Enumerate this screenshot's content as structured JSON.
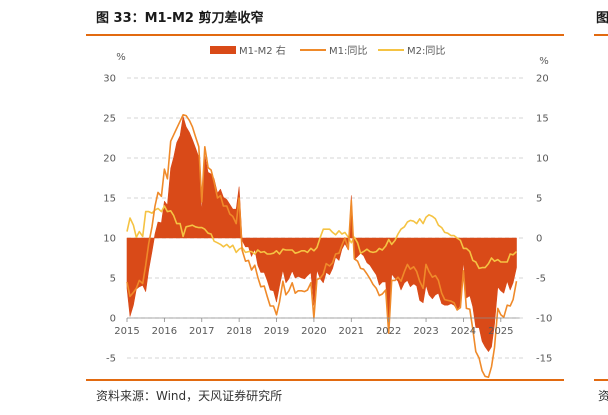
{
  "figure": {
    "title": "图 33：M1-M2 剪刀差收窄",
    "next_panel_title_fragment": "图",
    "source": "资料来源：Wind，天风证券研究所",
    "next_panel_source_fragment": "资"
  },
  "chart_data": {
    "type": "line",
    "title": "M1-M2 剪刀差收窄",
    "left_axis": {
      "unit": "%",
      "ylim": [
        -5,
        30
      ],
      "ticks": [
        -5,
        0,
        5,
        10,
        15,
        20,
        25,
        30
      ]
    },
    "right_axis": {
      "unit": "%",
      "ylim": [
        -15,
        20
      ],
      "ticks": [
        -15,
        -10,
        -5,
        0,
        5,
        10,
        15,
        20
      ]
    },
    "x_ticks": [
      "2015",
      "2016",
      "2017",
      "2018",
      "2019",
      "2020",
      "2021",
      "2022",
      "2023",
      "2024",
      "2025"
    ],
    "legend": [
      "M1-M2 右",
      "M1:同比",
      "M2:同比"
    ],
    "colors": {
      "gap": "#d94a18",
      "m1": "#ef8a2a",
      "m2": "#f5c343",
      "grid": "#c8c8c8",
      "text": "#595959"
    },
    "series": [
      {
        "name": "M1:同比",
        "axis": "left",
        "points": [
          [
            2015.0,
            4.5
          ],
          [
            2015.08,
            2.7
          ],
          [
            2015.17,
            3.2
          ],
          [
            2015.25,
            3.7
          ],
          [
            2015.33,
            4.7
          ],
          [
            2015.42,
            4.3
          ],
          [
            2015.5,
            6.6
          ],
          [
            2015.58,
            9.3
          ],
          [
            2015.67,
            11.4
          ],
          [
            2015.75,
            14.0
          ],
          [
            2015.83,
            15.7
          ],
          [
            2015.92,
            15.2
          ],
          [
            2016.0,
            18.6
          ],
          [
            2016.08,
            17.4
          ],
          [
            2016.17,
            22.1
          ],
          [
            2016.25,
            22.9
          ],
          [
            2016.33,
            23.7
          ],
          [
            2016.42,
            24.6
          ],
          [
            2016.5,
            25.4
          ],
          [
            2016.58,
            25.3
          ],
          [
            2016.67,
            24.7
          ],
          [
            2016.75,
            23.9
          ],
          [
            2016.83,
            22.7
          ],
          [
            2016.92,
            21.4
          ],
          [
            2017.0,
            14.5
          ],
          [
            2017.08,
            21.4
          ],
          [
            2017.17,
            18.8
          ],
          [
            2017.25,
            18.5
          ],
          [
            2017.33,
            17.0
          ],
          [
            2017.42,
            15.0
          ],
          [
            2017.5,
            15.3
          ],
          [
            2017.58,
            14.0
          ],
          [
            2017.67,
            14.0
          ],
          [
            2017.75,
            13.0
          ],
          [
            2017.83,
            12.7
          ],
          [
            2017.92,
            11.8
          ],
          [
            2018.0,
            15.0
          ],
          [
            2018.08,
            8.5
          ],
          [
            2018.17,
            7.1
          ],
          [
            2018.25,
            7.2
          ],
          [
            2018.33,
            6.0
          ],
          [
            2018.42,
            6.6
          ],
          [
            2018.5,
            5.1
          ],
          [
            2018.58,
            3.9
          ],
          [
            2018.67,
            4.0
          ],
          [
            2018.75,
            2.7
          ],
          [
            2018.83,
            1.5
          ],
          [
            2018.92,
            1.5
          ],
          [
            2019.0,
            0.4
          ],
          [
            2019.08,
            2.0
          ],
          [
            2019.17,
            4.6
          ],
          [
            2019.25,
            2.9
          ],
          [
            2019.33,
            3.4
          ],
          [
            2019.42,
            4.4
          ],
          [
            2019.5,
            3.1
          ],
          [
            2019.58,
            3.4
          ],
          [
            2019.67,
            3.4
          ],
          [
            2019.75,
            3.3
          ],
          [
            2019.83,
            3.5
          ],
          [
            2019.92,
            4.4
          ],
          [
            2020.0,
            0.0
          ],
          [
            2020.08,
            4.8
          ],
          [
            2020.17,
            5.0
          ],
          [
            2020.25,
            5.5
          ],
          [
            2020.33,
            6.8
          ],
          [
            2020.42,
            6.5
          ],
          [
            2020.5,
            6.9
          ],
          [
            2020.58,
            8.0
          ],
          [
            2020.67,
            8.1
          ],
          [
            2020.75,
            9.1
          ],
          [
            2020.83,
            10.0
          ],
          [
            2020.92,
            8.6
          ],
          [
            2021.0,
            14.7
          ],
          [
            2021.08,
            7.4
          ],
          [
            2021.17,
            7.1
          ],
          [
            2021.25,
            6.2
          ],
          [
            2021.33,
            6.1
          ],
          [
            2021.42,
            5.5
          ],
          [
            2021.5,
            4.9
          ],
          [
            2021.58,
            4.2
          ],
          [
            2021.67,
            3.7
          ],
          [
            2021.75,
            2.8
          ],
          [
            2021.83,
            3.0
          ],
          [
            2021.92,
            3.5
          ],
          [
            2022.0,
            -1.9
          ],
          [
            2022.08,
            4.7
          ],
          [
            2022.17,
            4.7
          ],
          [
            2022.25,
            5.1
          ],
          [
            2022.33,
            4.6
          ],
          [
            2022.42,
            5.8
          ],
          [
            2022.5,
            6.7
          ],
          [
            2022.58,
            6.1
          ],
          [
            2022.67,
            6.4
          ],
          [
            2022.75,
            5.8
          ],
          [
            2022.83,
            4.6
          ],
          [
            2022.92,
            3.7
          ],
          [
            2023.0,
            6.7
          ],
          [
            2023.08,
            5.8
          ],
          [
            2023.17,
            5.1
          ],
          [
            2023.25,
            5.3
          ],
          [
            2023.33,
            4.7
          ],
          [
            2023.42,
            3.1
          ],
          [
            2023.5,
            2.3
          ],
          [
            2023.58,
            2.2
          ],
          [
            2023.67,
            2.1
          ],
          [
            2023.75,
            1.9
          ],
          [
            2023.83,
            1.0
          ],
          [
            2023.92,
            1.3
          ],
          [
            2024.0,
            5.9
          ],
          [
            2024.08,
            1.2
          ],
          [
            2024.17,
            1.1
          ],
          [
            2024.25,
            -1.4
          ],
          [
            2024.33,
            -4.2
          ],
          [
            2024.42,
            -5.0
          ],
          [
            2024.5,
            -6.6
          ],
          [
            2024.58,
            -7.3
          ],
          [
            2024.67,
            -7.4
          ],
          [
            2024.75,
            -6.1
          ],
          [
            2024.83,
            -3.7
          ],
          [
            2024.92,
            1.2
          ],
          [
            2025.0,
            0.4
          ],
          [
            2025.08,
            0.1
          ],
          [
            2025.17,
            1.6
          ],
          [
            2025.25,
            1.5
          ],
          [
            2025.33,
            2.3
          ],
          [
            2025.42,
            4.6
          ]
        ]
      },
      {
        "name": "M2:同比",
        "axis": "left",
        "points": [
          [
            2015.0,
            10.8
          ],
          [
            2015.08,
            12.5
          ],
          [
            2015.17,
            11.6
          ],
          [
            2015.25,
            10.1
          ],
          [
            2015.33,
            10.8
          ],
          [
            2015.42,
            10.2
          ],
          [
            2015.5,
            13.3
          ],
          [
            2015.58,
            13.3
          ],
          [
            2015.67,
            13.1
          ],
          [
            2015.75,
            13.5
          ],
          [
            2015.83,
            13.7
          ],
          [
            2015.92,
            13.3
          ],
          [
            2016.0,
            14.0
          ],
          [
            2016.08,
            13.3
          ],
          [
            2016.17,
            13.4
          ],
          [
            2016.25,
            12.8
          ],
          [
            2016.33,
            11.8
          ],
          [
            2016.42,
            11.8
          ],
          [
            2016.5,
            10.2
          ],
          [
            2016.58,
            11.4
          ],
          [
            2016.67,
            11.5
          ],
          [
            2016.75,
            11.6
          ],
          [
            2016.83,
            11.4
          ],
          [
            2016.92,
            11.3
          ],
          [
            2017.0,
            11.3
          ],
          [
            2017.08,
            11.1
          ],
          [
            2017.17,
            10.6
          ],
          [
            2017.25,
            10.5
          ],
          [
            2017.33,
            9.6
          ],
          [
            2017.42,
            9.4
          ],
          [
            2017.5,
            9.2
          ],
          [
            2017.58,
            8.9
          ],
          [
            2017.67,
            9.2
          ],
          [
            2017.75,
            8.8
          ],
          [
            2017.83,
            9.1
          ],
          [
            2017.92,
            8.2
          ],
          [
            2018.0,
            8.6
          ],
          [
            2018.08,
            8.8
          ],
          [
            2018.17,
            8.2
          ],
          [
            2018.25,
            8.3
          ],
          [
            2018.33,
            8.3
          ],
          [
            2018.42,
            8.0
          ],
          [
            2018.5,
            8.5
          ],
          [
            2018.58,
            8.2
          ],
          [
            2018.67,
            8.3
          ],
          [
            2018.75,
            8.0
          ],
          [
            2018.83,
            8.0
          ],
          [
            2018.92,
            8.1
          ],
          [
            2019.0,
            8.4
          ],
          [
            2019.08,
            8.0
          ],
          [
            2019.17,
            8.6
          ],
          [
            2019.25,
            8.5
          ],
          [
            2019.33,
            8.5
          ],
          [
            2019.42,
            8.5
          ],
          [
            2019.5,
            8.1
          ],
          [
            2019.58,
            8.2
          ],
          [
            2019.67,
            8.4
          ],
          [
            2019.75,
            8.4
          ],
          [
            2019.83,
            8.2
          ],
          [
            2019.92,
            8.7
          ],
          [
            2020.0,
            8.4
          ],
          [
            2020.08,
            8.8
          ],
          [
            2020.17,
            10.1
          ],
          [
            2020.25,
            11.1
          ],
          [
            2020.33,
            11.1
          ],
          [
            2020.42,
            11.1
          ],
          [
            2020.5,
            10.7
          ],
          [
            2020.58,
            10.4
          ],
          [
            2020.67,
            10.9
          ],
          [
            2020.75,
            10.5
          ],
          [
            2020.83,
            10.7
          ],
          [
            2020.92,
            10.1
          ],
          [
            2021.0,
            9.4
          ],
          [
            2021.08,
            10.1
          ],
          [
            2021.17,
            9.4
          ],
          [
            2021.25,
            8.1
          ],
          [
            2021.33,
            8.3
          ],
          [
            2021.42,
            8.6
          ],
          [
            2021.5,
            8.3
          ],
          [
            2021.58,
            8.2
          ],
          [
            2021.67,
            8.3
          ],
          [
            2021.75,
            8.7
          ],
          [
            2021.83,
            8.5
          ],
          [
            2021.92,
            9.0
          ],
          [
            2022.0,
            9.8
          ],
          [
            2022.08,
            9.2
          ],
          [
            2022.17,
            9.7
          ],
          [
            2022.25,
            10.5
          ],
          [
            2022.33,
            11.1
          ],
          [
            2022.42,
            11.4
          ],
          [
            2022.5,
            12.0
          ],
          [
            2022.58,
            12.2
          ],
          [
            2022.67,
            12.1
          ],
          [
            2022.75,
            11.8
          ],
          [
            2022.83,
            12.4
          ],
          [
            2022.92,
            11.8
          ],
          [
            2023.0,
            12.6
          ],
          [
            2023.08,
            12.9
          ],
          [
            2023.17,
            12.7
          ],
          [
            2023.25,
            12.4
          ],
          [
            2023.33,
            11.6
          ],
          [
            2023.42,
            11.3
          ],
          [
            2023.5,
            10.7
          ],
          [
            2023.58,
            10.6
          ],
          [
            2023.67,
            10.3
          ],
          [
            2023.75,
            10.3
          ],
          [
            2023.83,
            10.0
          ],
          [
            2023.92,
            9.7
          ],
          [
            2024.0,
            8.7
          ],
          [
            2024.08,
            8.7
          ],
          [
            2024.17,
            8.3
          ],
          [
            2024.25,
            7.2
          ],
          [
            2024.33,
            7.0
          ],
          [
            2024.42,
            6.2
          ],
          [
            2024.5,
            6.3
          ],
          [
            2024.58,
            6.3
          ],
          [
            2024.67,
            6.8
          ],
          [
            2024.75,
            7.5
          ],
          [
            2024.83,
            7.1
          ],
          [
            2024.92,
            7.3
          ],
          [
            2025.0,
            7.0
          ],
          [
            2025.08,
            7.0
          ],
          [
            2025.17,
            7.0
          ],
          [
            2025.25,
            8.0
          ],
          [
            2025.33,
            7.9
          ],
          [
            2025.42,
            8.3
          ]
        ]
      }
    ],
    "gap_series": {
      "name": "M1-M2 右",
      "axis": "right",
      "style": "filled area",
      "definition": "M1:同比 − M2:同比"
    }
  }
}
